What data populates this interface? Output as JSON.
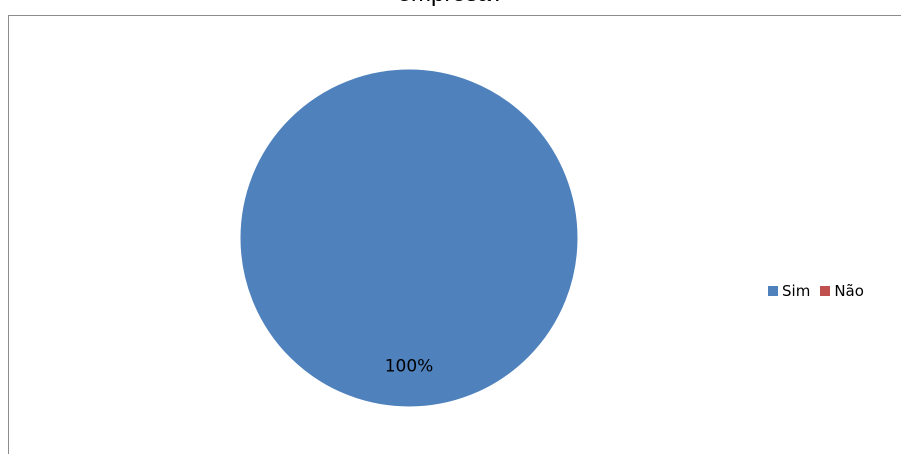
{
  "chart_data": {
    "type": "pie",
    "title": "empresa?",
    "categories": [
      "Sim",
      "Não"
    ],
    "values": [
      100,
      0
    ],
    "data_labels": [
      "100%",
      ""
    ],
    "colors": [
      "#4f81bd",
      "#c0504d"
    ],
    "legend": "right"
  }
}
